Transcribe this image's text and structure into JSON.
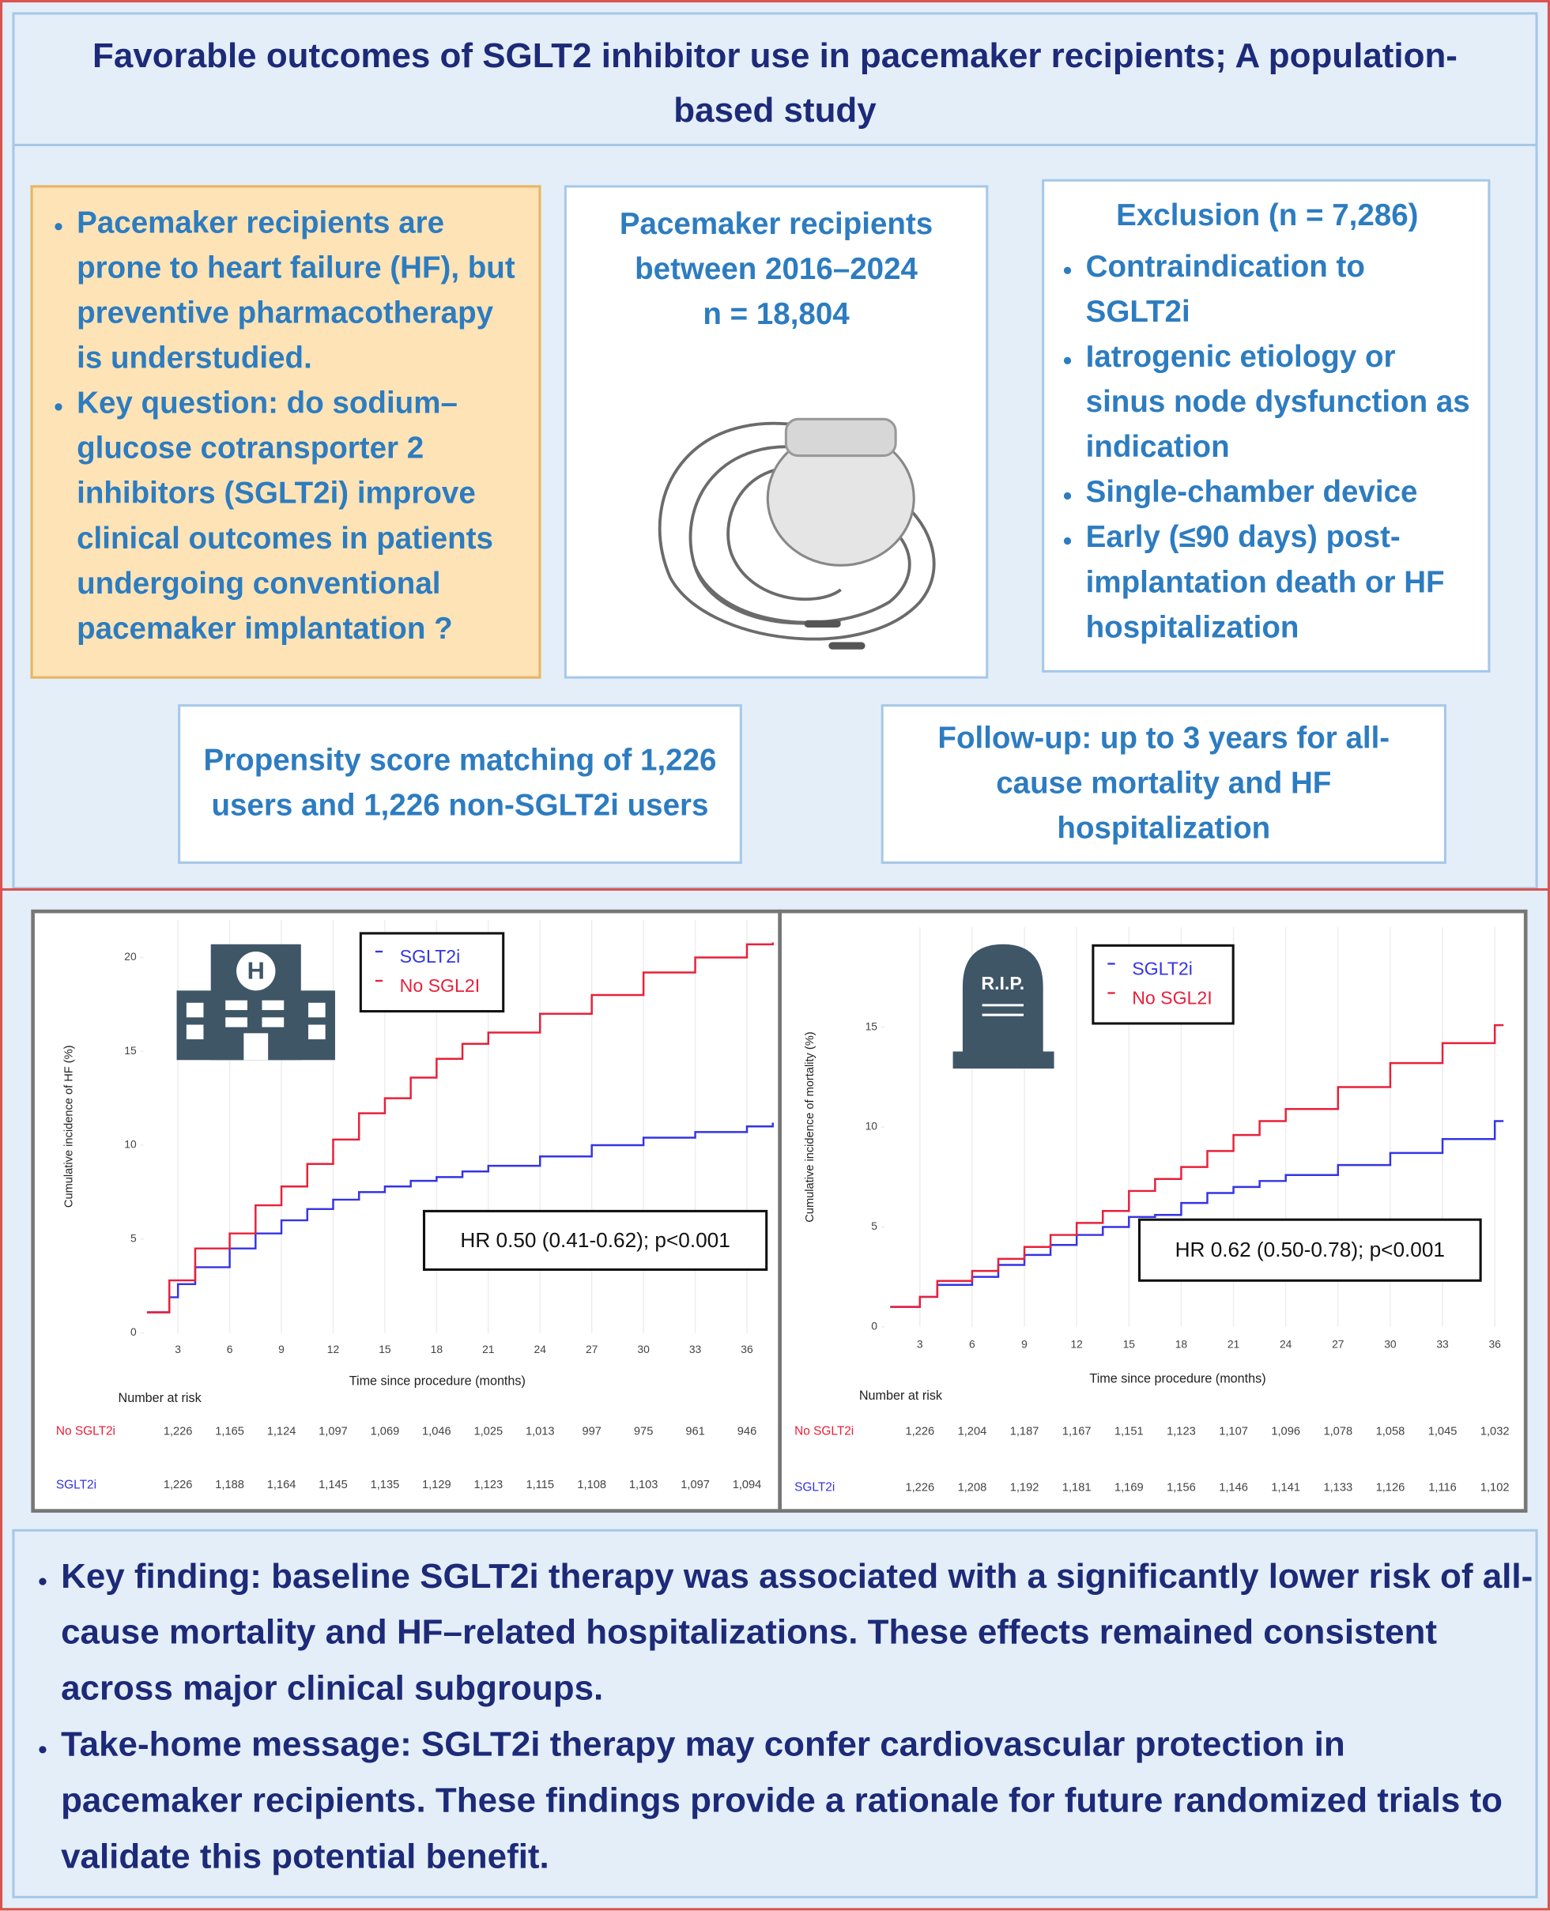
{
  "header": {
    "title": "Favorable outcomes of SGLT2 inhibitor use in pacemaker recipients; A population-based study"
  },
  "background": {
    "bullets": [
      "Pacemaker recipients are prone to heart failure (HF), but preventive pharmacotherapy is understudied.",
      "Key question: do sodium–glucose cotransporter 2 inhibitors (SGLT2i) improve clinical outcomes in patients undergoing conventional pacemaker implantation ?"
    ]
  },
  "cohort": {
    "text": "Pacemaker recipients between 2016–2024",
    "n": "n = 18,804"
  },
  "exclusion": {
    "title": "Exclusion (n = 7,286)",
    "bullets": [
      "Contraindication to SGLT2i",
      "Iatrogenic etiology or sinus node dysfunction as indication",
      "Single-chamber device",
      "Early (≤90 days) post-implantation death or HF hospitalization"
    ]
  },
  "matching": {
    "text": "Propensity score matching of 1,226 users and 1,226 non-SGLT2i users"
  },
  "follow_up": {
    "text": "Follow-up: up to 3 years for all-cause mortality and HF hospitalization"
  },
  "chart_data": [
    {
      "type": "line",
      "step": true,
      "grid": true,
      "legend": "top",
      "icon_text": "H",
      "x_label": "Time since procedure (months)",
      "y_label": "Cumulative incidence of HF (%)",
      "annotation": "HR 0.50 (0.41-0.62); p<0.001",
      "x": [
        1.2,
        2.5,
        3,
        4,
        6,
        7.5,
        9,
        10.5,
        12,
        13.5,
        15,
        16.5,
        18,
        19.5,
        21,
        24,
        27,
        30,
        33,
        36,
        37.5
      ],
      "series": [
        {
          "name": "SGLT2i",
          "color": "#3434e6",
          "values": [
            1.1,
            1.9,
            2.6,
            3.5,
            4.5,
            5.3,
            6.0,
            6.6,
            7.1,
            7.5,
            7.8,
            8.1,
            8.3,
            8.6,
            8.9,
            9.4,
            10.0,
            10.4,
            10.7,
            11.0,
            11.2
          ]
        },
        {
          "name": "No SGL2I",
          "color": "#e8203a",
          "values": [
            1.1,
            2.8,
            2.8,
            4.5,
            5.3,
            6.8,
            7.8,
            9.0,
            10.3,
            11.7,
            12.5,
            13.6,
            14.6,
            15.4,
            16.0,
            17.0,
            18.0,
            19.2,
            20.0,
            20.7,
            20.8
          ]
        }
      ],
      "xlim": [
        0,
        37.5
      ],
      "ylim": [
        0,
        22
      ],
      "xticks": [
        3,
        6,
        9,
        12,
        15,
        18,
        21,
        24,
        27,
        30,
        33,
        36
      ],
      "yticks": [
        0,
        5,
        10,
        15,
        20
      ],
      "risk_table": {
        "title": "Number at risk",
        "rows": [
          {
            "label": "No SGLT2i",
            "color": "#e8203a",
            "values": [
              "1,226",
              "1,165",
              "1,124",
              "1,097",
              "1,069",
              "1,046",
              "1,025",
              "1,013",
              "997",
              "975",
              "961",
              "946"
            ]
          },
          {
            "label": "SGLT2i",
            "color": "#3434e6",
            "values": [
              "1,226",
              "1,188",
              "1,164",
              "1,145",
              "1,135",
              "1,129",
              "1,123",
              "1,115",
              "1,108",
              "1,103",
              "1,097",
              "1,094"
            ]
          }
        ]
      }
    },
    {
      "type": "line",
      "step": true,
      "grid": true,
      "legend": "top",
      "icon_text": "R.I.P.",
      "x_label": "Time since procedure (months)",
      "y_label": "Cumulative incidence of mortality (%)",
      "annotation": "HR 0.62 (0.50-0.78); p<0.001",
      "x": [
        1.3,
        3,
        4,
        6,
        7.5,
        9,
        10.5,
        12,
        13.5,
        15,
        16.5,
        18,
        19.5,
        21,
        22.5,
        24,
        27,
        30,
        33,
        36,
        36.5
      ],
      "series": [
        {
          "name": "SGLT2i",
          "color": "#3434e6",
          "values": [
            1.0,
            1.5,
            2.1,
            2.5,
            3.1,
            3.6,
            4.1,
            4.6,
            5.0,
            5.5,
            5.6,
            6.2,
            6.7,
            7.0,
            7.3,
            7.6,
            8.1,
            8.7,
            9.4,
            10.3,
            10.3
          ]
        },
        {
          "name": "No SGL2I",
          "color": "#e8203a",
          "values": [
            1.0,
            1.5,
            2.3,
            2.8,
            3.4,
            4.0,
            4.6,
            5.2,
            5.8,
            6.8,
            7.4,
            8.0,
            8.8,
            9.6,
            10.3,
            10.9,
            12.0,
            13.2,
            14.2,
            15.1,
            15.1
          ]
        }
      ],
      "xlim": [
        0,
        37
      ],
      "ylim": [
        0,
        20
      ],
      "xticks": [
        3,
        6,
        9,
        12,
        15,
        18,
        21,
        24,
        27,
        30,
        33,
        36
      ],
      "yticks": [
        0,
        5,
        10,
        15
      ],
      "risk_table": {
        "title": "Number at risk",
        "rows": [
          {
            "label": "No SGLT2i",
            "color": "#e8203a",
            "values": [
              "1,226",
              "1,204",
              "1,187",
              "1,167",
              "1,151",
              "1,123",
              "1,107",
              "1,096",
              "1,078",
              "1,058",
              "1,045",
              "1,032"
            ]
          },
          {
            "label": "SGLT2i",
            "color": "#3434e6",
            "values": [
              "1,226",
              "1,208",
              "1,192",
              "1,181",
              "1,169",
              "1,156",
              "1,146",
              "1,141",
              "1,133",
              "1,126",
              "1,116",
              "1,102"
            ]
          }
        ]
      }
    }
  ],
  "findings": {
    "bullets": [
      "Key finding: baseline SGLT2i therapy was associated with a significantly lower risk of all-cause mortality and HF–related hospitalizations. These effects remained consistent across major clinical subgroups.",
      "Take-home message: SGLT2i therapy may confer cardiovascular protection in pacemaker recipients. These findings provide a rationale for future randomized trials to validate this potential benefit."
    ]
  }
}
